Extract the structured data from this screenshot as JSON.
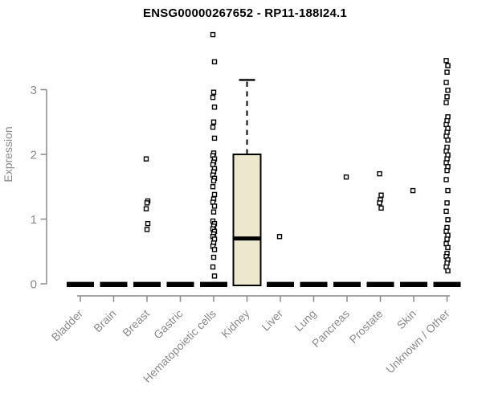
{
  "window": {
    "background": "#ffffff"
  },
  "chart_data": {
    "type": "boxplot",
    "title": "ENSG00000267652 - RP11-188I24.1",
    "xlabel": "",
    "ylabel": "Expression",
    "yticks": [
      0,
      1,
      2,
      3
    ],
    "ylim": [
      0,
      3.9
    ],
    "grid": false,
    "legend": null,
    "categories": [
      "Bladder",
      "Brain",
      "Breast",
      "Gastric",
      "Hematopoietic cells",
      "Kidney",
      "Liver",
      "Lung",
      "Pancreas",
      "Prostate",
      "Skin",
      "Unknown / Other"
    ],
    "boxes": [
      {
        "category": "Bladder",
        "q1": 0,
        "median": 0,
        "q3": 0,
        "whisker_low": 0,
        "whisker_high": 0
      },
      {
        "category": "Brain",
        "q1": 0,
        "median": 0,
        "q3": 0,
        "whisker_low": 0,
        "whisker_high": 0
      },
      {
        "category": "Breast",
        "q1": 0,
        "median": 0,
        "q3": 0,
        "whisker_low": 0,
        "whisker_high": 0
      },
      {
        "category": "Gastric",
        "q1": 0,
        "median": 0,
        "q3": 0,
        "whisker_low": 0,
        "whisker_high": 0
      },
      {
        "category": "Hematopoietic cells",
        "q1": 0,
        "median": 0,
        "q3": 0,
        "whisker_low": 0,
        "whisker_high": 0
      },
      {
        "category": "Kidney",
        "q1": 0,
        "median": 0.7,
        "q3": 2.0,
        "whisker_low": 0,
        "whisker_high": 3.15
      },
      {
        "category": "Liver",
        "q1": 0,
        "median": 0,
        "q3": 0,
        "whisker_low": 0,
        "whisker_high": 0
      },
      {
        "category": "Lung",
        "q1": 0,
        "median": 0,
        "q3": 0,
        "whisker_low": 0,
        "whisker_high": 0
      },
      {
        "category": "Pancreas",
        "q1": 0,
        "median": 0,
        "q3": 0,
        "whisker_low": 0,
        "whisker_high": 0
      },
      {
        "category": "Prostate",
        "q1": 0,
        "median": 0,
        "q3": 0,
        "whisker_low": 0,
        "whisker_high": 0
      },
      {
        "category": "Skin",
        "q1": 0,
        "median": 0,
        "q3": 0,
        "whisker_low": 0,
        "whisker_high": 0
      },
      {
        "category": "Unknown / Other",
        "q1": 0,
        "median": 0,
        "q3": 0,
        "whisker_low": 0,
        "whisker_high": 0
      }
    ],
    "outliers": [
      [],
      [],
      [
        1.93,
        1.28,
        1.25,
        1.16,
        0.93,
        0.84
      ],
      [],
      [
        3.85,
        3.43,
        2.96,
        2.88,
        2.73,
        2.5,
        2.42,
        2.25,
        2.02,
        1.98,
        1.93,
        1.88,
        1.84,
        1.78,
        1.73,
        1.68,
        1.63,
        1.59,
        1.5,
        1.38,
        1.31,
        1.26,
        1.2,
        1.11,
        0.97,
        0.93,
        0.89,
        0.85,
        0.81,
        0.77,
        0.73,
        0.69,
        0.63,
        0.58,
        0.53,
        0.41,
        0.26,
        0.12
      ],
      [],
      [
        0.73
      ],
      [],
      [
        1.65
      ],
      [
        1.7,
        1.37,
        1.3,
        1.25,
        1.17
      ],
      [
        1.44
      ],
      [
        3.45,
        3.37,
        3.27,
        3.11,
        2.99,
        2.89,
        2.8,
        2.58,
        2.52,
        2.46,
        2.4,
        2.34,
        2.28,
        2.22,
        2.11,
        2.05,
        1.99,
        1.93,
        1.87,
        1.81,
        1.75,
        1.61,
        1.44,
        1.25,
        1.12,
        0.99,
        0.87,
        0.81,
        0.75,
        0.69,
        0.62,
        0.56,
        0.47,
        0.42,
        0.37,
        0.32,
        0.26,
        0.2
      ]
    ],
    "colors": {
      "box_fill": "#ece8cd",
      "box_stroke": "#000000",
      "median": "#000000",
      "whisker": "#000000",
      "outlier_stroke": "#000000",
      "outlier_fill": "#ffffff",
      "axis": "#8a8a8a",
      "tick_label": "#8a8a8a",
      "title": "#000000",
      "background": "#ffffff"
    }
  }
}
